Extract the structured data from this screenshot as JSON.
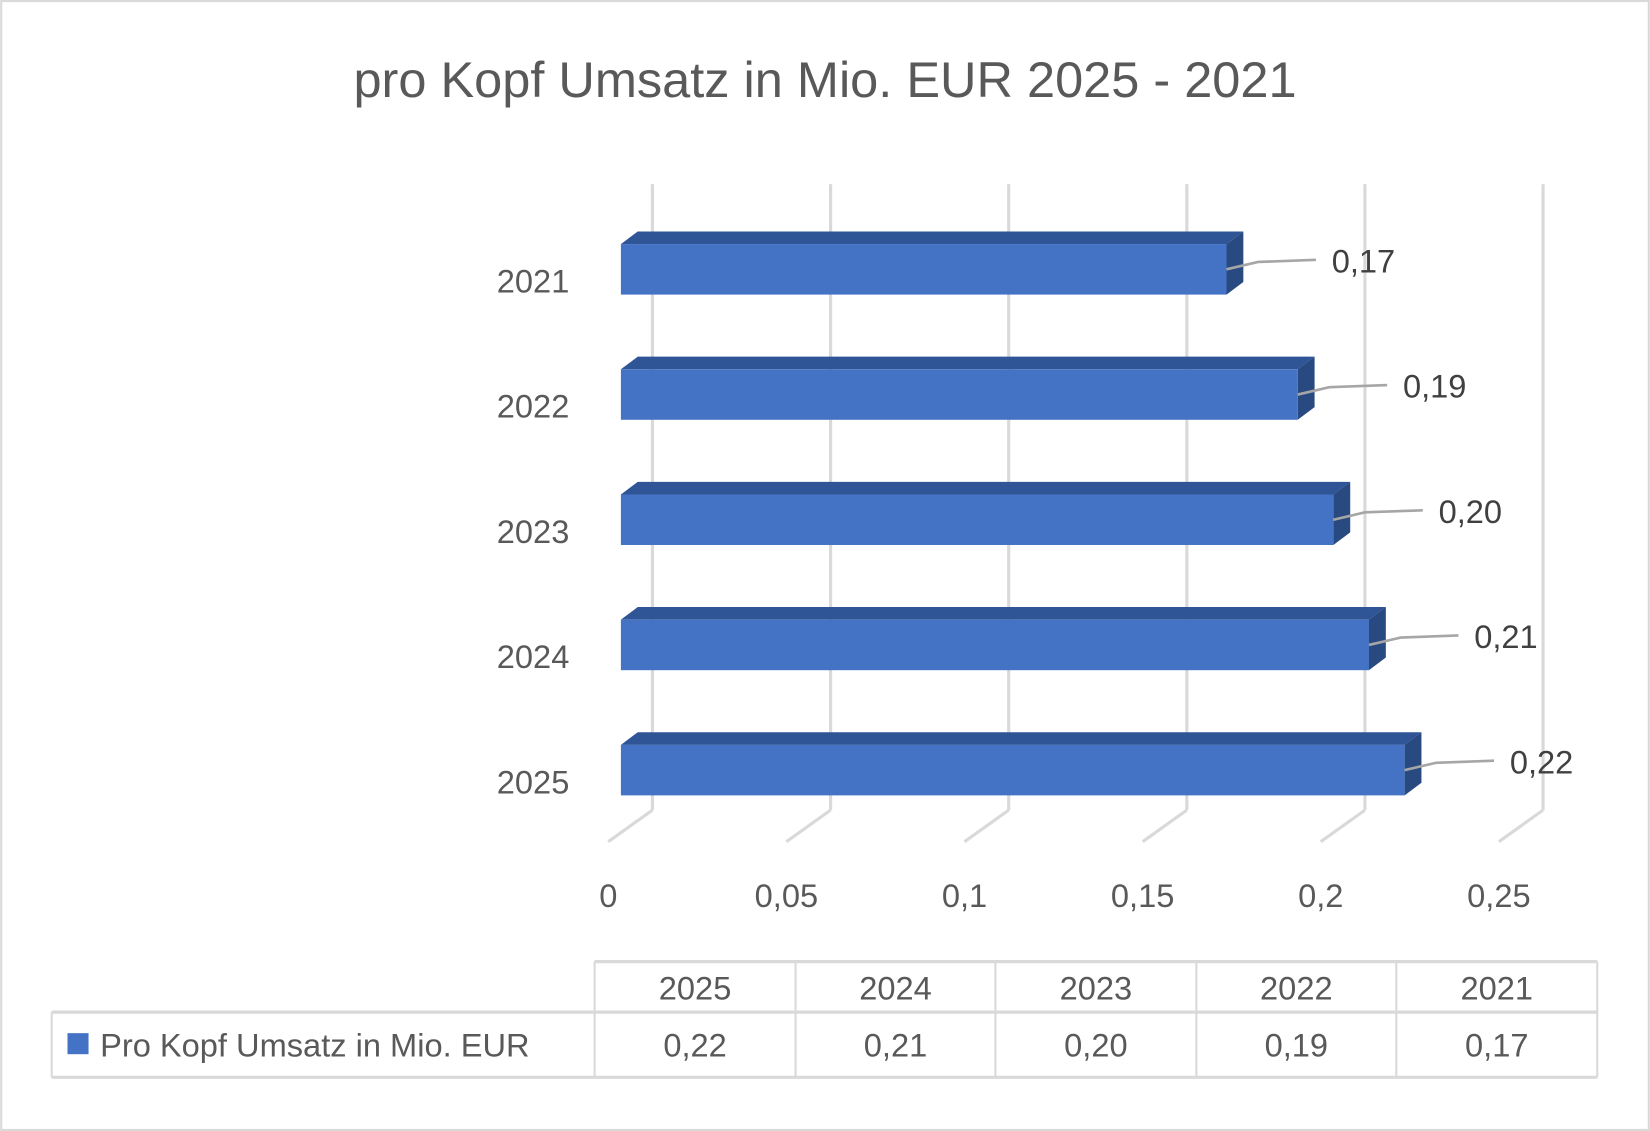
{
  "chart_data": {
    "type": "bar",
    "orientation": "horizontal",
    "style": "3d-clustered",
    "title": "pro Kopf Umsatz in Mio. EUR 2025 - 2021",
    "categories": [
      "2021",
      "2022",
      "2023",
      "2024",
      "2025"
    ],
    "series": [
      {
        "name": "Pro Kopf Umsatz in Mio. EUR",
        "values": [
          0.17,
          0.19,
          0.2,
          0.21,
          0.22
        ]
      }
    ],
    "data_labels": [
      "0,17",
      "0,19",
      "0,20",
      "0,21",
      "0,22"
    ],
    "xlim": [
      0,
      0.25
    ],
    "x_ticks": [
      "0",
      "0,05",
      "0,1",
      "0,15",
      "0,2",
      "0,25"
    ],
    "grid": true,
    "legend": "data-table",
    "colors": {
      "bar_front": "#4472C4",
      "bar_top": "#2F5597",
      "bar_side": "#284A80",
      "grid": "#D9D9D9",
      "text": "#595959"
    }
  },
  "data_table": {
    "header": [
      "2025",
      "2024",
      "2023",
      "2022",
      "2021"
    ],
    "row_label": "Pro Kopf Umsatz in Mio. EUR",
    "row_values": [
      "0,22",
      "0,21",
      "0,20",
      "0,19",
      "0,17"
    ]
  }
}
